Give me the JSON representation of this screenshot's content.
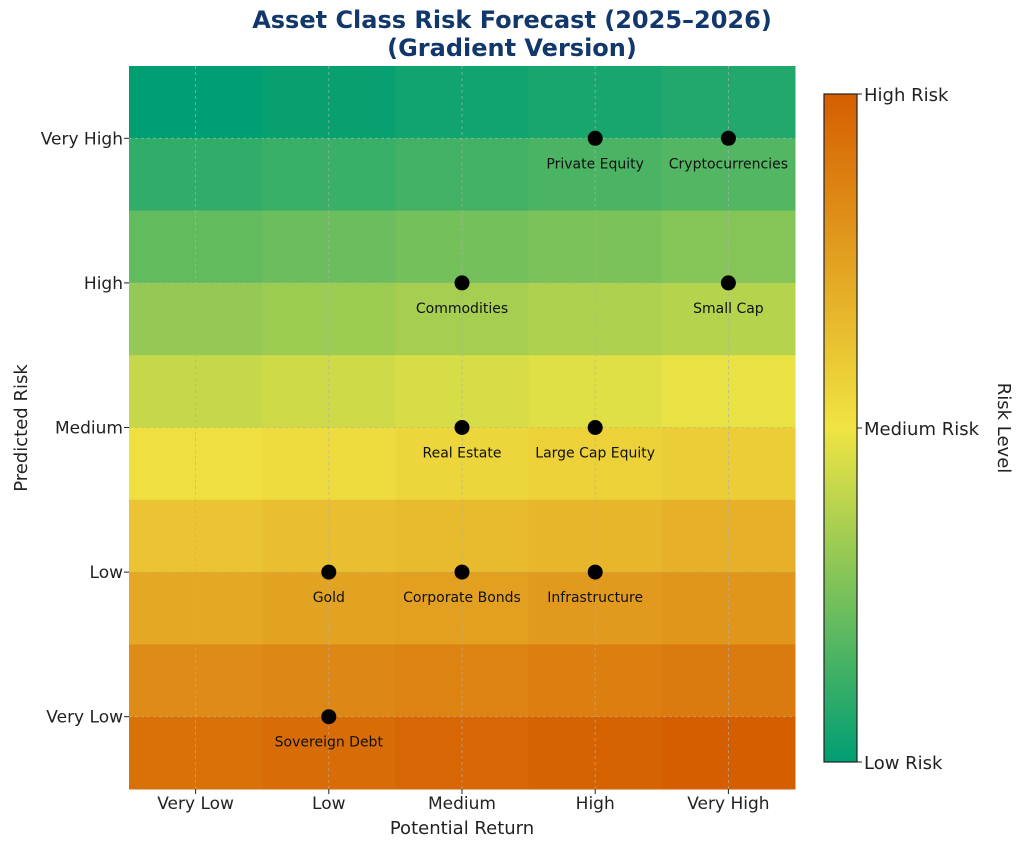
{
  "chart_data": {
    "type": "scatter",
    "title_line1": "Asset Class Risk Forecast (2025–2026)",
    "title_line2": "(Gradient Version)",
    "xlabel": "Potential Return",
    "ylabel": "Predicted Risk",
    "x_categories": [
      "Very Low",
      "Low",
      "Medium",
      "High",
      "Very High"
    ],
    "y_categories": [
      "Very Low",
      "Low",
      "Medium",
      "High",
      "Very High"
    ],
    "grid": true,
    "background": "heatmap gradient from low risk (green, top) to high risk (orange, bottom)",
    "points": [
      {
        "name": "Private Equity",
        "x": "High",
        "y": "Very High"
      },
      {
        "name": "Cryptocurrencies",
        "x": "Very High",
        "y": "Very High"
      },
      {
        "name": "Commodities",
        "x": "Medium",
        "y": "High"
      },
      {
        "name": "Small Cap",
        "x": "Very High",
        "y": "High"
      },
      {
        "name": "Real Estate",
        "x": "Medium",
        "y": "Medium"
      },
      {
        "name": "Large Cap Equity",
        "x": "High",
        "y": "Medium"
      },
      {
        "name": "Gold",
        "x": "Low",
        "y": "Low"
      },
      {
        "name": "Corporate Bonds",
        "x": "Medium",
        "y": "Low"
      },
      {
        "name": "Infrastructure",
        "x": "High",
        "y": "Low"
      },
      {
        "name": "Sovereign Debt",
        "x": "Low",
        "y": "Very Low"
      }
    ],
    "colorbar": {
      "label": "Risk Level",
      "ticks": [
        "Low Risk",
        "Medium Risk",
        "High Risk"
      ],
      "colors": {
        "low": "#009e73",
        "medium": "#f0e442",
        "high": "#d55e00"
      }
    }
  }
}
